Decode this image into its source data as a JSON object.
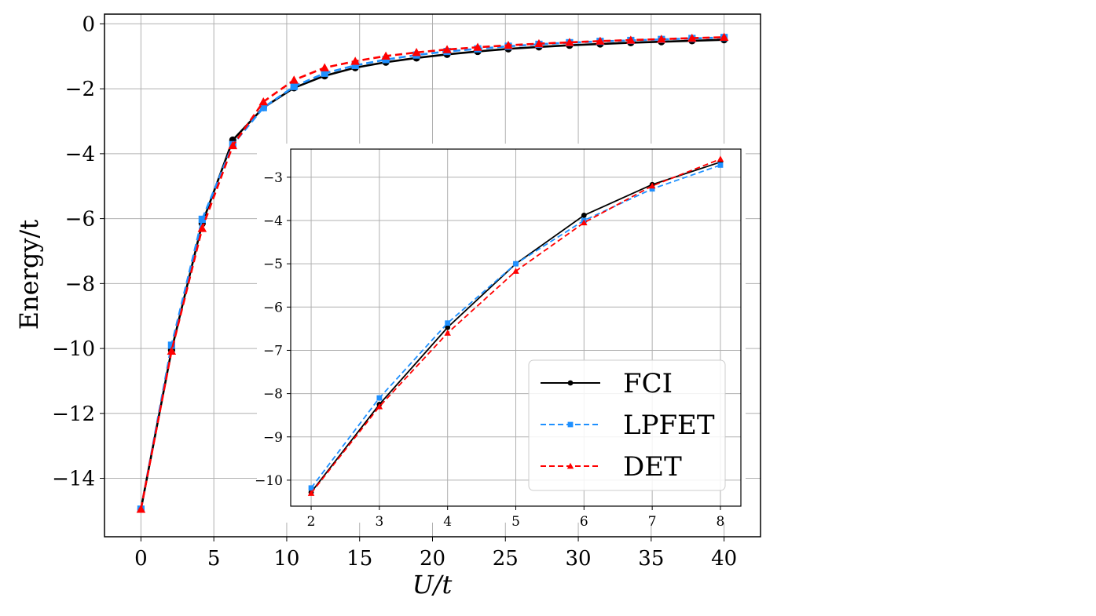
{
  "chart_data": [
    {
      "id": "main",
      "type": "line",
      "title": "",
      "xlabel": "U/t",
      "ylabel": "Energy/t",
      "xlim": [
        -2.5,
        42.5
      ],
      "ylim": [
        -15.8,
        0.3
      ],
      "xticks": [
        0,
        5,
        10,
        15,
        20,
        25,
        30,
        35,
        40
      ],
      "yticks": [
        0,
        -2,
        -4,
        -6,
        -8,
        -10,
        -12,
        -14
      ],
      "xtick_labels": [
        "0",
        "5",
        "10",
        "15",
        "20",
        "25",
        "30",
        "35",
        "40"
      ],
      "ytick_labels": [
        "0",
        "−2",
        "−4",
        "−6",
        "−8",
        "−10",
        "−12",
        "−14"
      ],
      "grid": true,
      "x": [
        0.0,
        2.1,
        4.2,
        6.3,
        8.4,
        10.5,
        12.6,
        14.7,
        16.8,
        18.9,
        21.0,
        23.1,
        25.2,
        27.3,
        29.4,
        31.5,
        33.6,
        35.7,
        37.8,
        40.0
      ],
      "series": [
        {
          "name": "FCI",
          "color": "#000000",
          "style": "solid",
          "marker": "circle",
          "values": [
            -14.95,
            -10.05,
            -6.15,
            -3.58,
            -2.58,
            -1.97,
            -1.6,
            -1.35,
            -1.18,
            -1.05,
            -0.94,
            -0.85,
            -0.77,
            -0.71,
            -0.66,
            -0.62,
            -0.58,
            -0.55,
            -0.52,
            -0.49
          ]
        },
        {
          "name": "LPFET",
          "color": "#1e90ff",
          "style": "dashed",
          "marker": "square",
          "values": [
            -14.95,
            -9.9,
            -6.02,
            -3.72,
            -2.58,
            -1.93,
            -1.52,
            -1.28,
            -1.1,
            -0.96,
            -0.85,
            -0.77,
            -0.69,
            -0.63,
            -0.58,
            -0.54,
            -0.51,
            -0.48,
            -0.45,
            -0.42
          ]
        },
        {
          "name": "DET",
          "color": "#ff0000",
          "style": "dashed",
          "marker": "triangle",
          "values": [
            -14.95,
            -10.08,
            -6.3,
            -3.75,
            -2.4,
            -1.73,
            -1.35,
            -1.15,
            -0.99,
            -0.88,
            -0.79,
            -0.72,
            -0.66,
            -0.61,
            -0.57,
            -0.53,
            -0.5,
            -0.47,
            -0.44,
            -0.41
          ]
        }
      ]
    },
    {
      "id": "inset",
      "type": "line",
      "title": "",
      "xlabel": "",
      "ylabel": "",
      "xlim": [
        1.7,
        8.3
      ],
      "ylim": [
        -10.6,
        -2.35
      ],
      "xticks": [
        2,
        3,
        4,
        5,
        6,
        7,
        8
      ],
      "yticks": [
        -3,
        -4,
        -5,
        -6,
        -7,
        -8,
        -9,
        -10
      ],
      "xtick_labels": [
        "2",
        "3",
        "4",
        "5",
        "6",
        "7",
        "8"
      ],
      "ytick_labels": [
        "−3",
        "−4",
        "−5",
        "−6",
        "−7",
        "−8",
        "−9",
        "−10"
      ],
      "grid": true,
      "legend": {
        "placement": "lower-right",
        "entries": [
          "FCI",
          "LPFET",
          "DET"
        ]
      },
      "x": [
        2,
        3,
        4,
        5,
        6,
        7,
        8
      ],
      "series": [
        {
          "name": "FCI",
          "color": "#000000",
          "style": "solid",
          "marker": "circle",
          "values": [
            -10.28,
            -8.25,
            -6.47,
            -5.0,
            -3.88,
            -3.17,
            -2.65
          ]
        },
        {
          "name": "LPFET",
          "color": "#1e90ff",
          "style": "dashed",
          "marker": "square",
          "values": [
            -10.18,
            -8.1,
            -6.37,
            -5.0,
            -4.0,
            -3.27,
            -2.72
          ]
        },
        {
          "name": "DET",
          "color": "#ff0000",
          "style": "dashed",
          "marker": "triangle",
          "values": [
            -10.3,
            -8.3,
            -6.6,
            -5.17,
            -4.05,
            -3.2,
            -2.58
          ]
        }
      ]
    }
  ]
}
